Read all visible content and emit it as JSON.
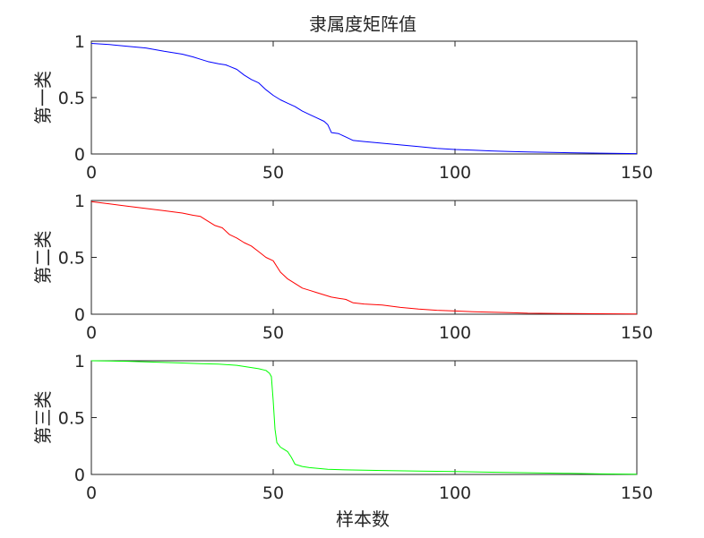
{
  "figure": {
    "title": "隶属度矩阵值",
    "xlabel": "样本数"
  },
  "chart_data": [
    {
      "type": "line",
      "title": "隶属度矩阵值",
      "xlabel": "",
      "ylabel": "第一类",
      "xlim": [
        0,
        150
      ],
      "ylim": [
        0,
        1
      ],
      "xticks": [
        "0",
        "50",
        "100",
        "150"
      ],
      "yticks": [
        "0",
        "0.5",
        "1"
      ],
      "grid": false,
      "color": "#0000ff",
      "series": [
        {
          "x": [
            0,
            5,
            10,
            15,
            20,
            25,
            28,
            30,
            32,
            35,
            37,
            40,
            42,
            44,
            46,
            48,
            50,
            52,
            54,
            56,
            58,
            60,
            62,
            64,
            65,
            66,
            68,
            70,
            72,
            75,
            80,
            85,
            90,
            95,
            100,
            105,
            110,
            115,
            120,
            130,
            140,
            150
          ],
          "y": [
            0.98,
            0.97,
            0.955,
            0.94,
            0.91,
            0.885,
            0.86,
            0.84,
            0.82,
            0.8,
            0.79,
            0.75,
            0.7,
            0.66,
            0.63,
            0.57,
            0.52,
            0.48,
            0.45,
            0.42,
            0.38,
            0.35,
            0.32,
            0.29,
            0.26,
            0.19,
            0.18,
            0.15,
            0.12,
            0.11,
            0.095,
            0.08,
            0.065,
            0.05,
            0.04,
            0.033,
            0.027,
            0.022,
            0.018,
            0.012,
            0.007,
            0.003
          ]
        }
      ]
    },
    {
      "type": "line",
      "xlabel": "",
      "ylabel": "第二类",
      "xlim": [
        0,
        150
      ],
      "ylim": [
        0,
        1
      ],
      "xticks": [
        "0",
        "50",
        "100",
        "150"
      ],
      "yticks": [
        "0",
        "0.5",
        "1"
      ],
      "grid": false,
      "color": "#ff0000",
      "series": [
        {
          "x": [
            0,
            5,
            10,
            15,
            20,
            25,
            28,
            30,
            32,
            34,
            36,
            38,
            40,
            42,
            44,
            46,
            48,
            50,
            52,
            54,
            56,
            58,
            60,
            62,
            64,
            66,
            68,
            70,
            72,
            75,
            80,
            85,
            90,
            95,
            100,
            105,
            110,
            115,
            120,
            130,
            140,
            150
          ],
          "y": [
            0.99,
            0.97,
            0.95,
            0.93,
            0.91,
            0.89,
            0.87,
            0.86,
            0.82,
            0.78,
            0.76,
            0.7,
            0.67,
            0.63,
            0.6,
            0.55,
            0.5,
            0.47,
            0.37,
            0.31,
            0.27,
            0.23,
            0.21,
            0.19,
            0.17,
            0.15,
            0.14,
            0.13,
            0.1,
            0.09,
            0.08,
            0.06,
            0.045,
            0.035,
            0.028,
            0.022,
            0.018,
            0.013,
            0.009,
            0.006,
            0.004,
            0.002
          ]
        }
      ]
    },
    {
      "type": "line",
      "xlabel": "样本数",
      "ylabel": "第三类",
      "xlim": [
        0,
        150
      ],
      "ylim": [
        0,
        1
      ],
      "xticks": [
        "0",
        "50",
        "100",
        "150"
      ],
      "yticks": [
        "0",
        "0.5",
        "1"
      ],
      "grid": false,
      "color": "#00ff00",
      "series": [
        {
          "x": [
            0,
            5,
            10,
            15,
            20,
            25,
            30,
            35,
            40,
            43,
            46,
            48,
            49,
            49.5,
            50,
            50.5,
            51,
            52,
            53,
            54,
            55,
            56,
            58,
            60,
            65,
            70,
            80,
            90,
            100,
            110,
            120,
            130,
            140,
            150
          ],
          "y": [
            1.0,
            0.998,
            0.995,
            0.99,
            0.985,
            0.98,
            0.975,
            0.97,
            0.96,
            0.945,
            0.93,
            0.915,
            0.89,
            0.86,
            0.65,
            0.4,
            0.28,
            0.24,
            0.22,
            0.2,
            0.15,
            0.09,
            0.07,
            0.06,
            0.045,
            0.04,
            0.035,
            0.03,
            0.025,
            0.02,
            0.015,
            0.01,
            0.005,
            0.002
          ]
        }
      ]
    }
  ]
}
